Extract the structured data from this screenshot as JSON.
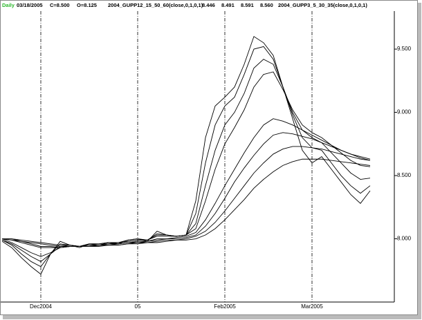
{
  "chart_data": {
    "type": "line",
    "header": {
      "period": "Daily",
      "date": "03/18/2005",
      "close": "C=8.500",
      "open": "O=8.125",
      "study1": "2004_GUPP12_15_50_60(close,0,1,0,1)",
      "readings": [
        "8.446",
        "8.491",
        "8.591",
        "8.560"
      ],
      "study2": "2004_GUPP3_5_30_35(close,0,1,0,1)"
    },
    "categories": [
      null,
      null,
      null,
      null,
      "Dec2004",
      null,
      null,
      null,
      null,
      null,
      null,
      null,
      null,
      null,
      "05",
      null,
      null,
      null,
      null,
      null,
      null,
      null,
      null,
      "Feb2005",
      null,
      null,
      null,
      null,
      null,
      null,
      null,
      null,
      "Mar2005",
      null,
      null,
      null,
      null,
      null,
      null,
      null,
      null
    ],
    "color": "#000000",
    "ylim": [
      7.5,
      9.79
    ],
    "yticks": [
      {
        "value": 8.0,
        "label": "8.000"
      },
      {
        "value": 8.5,
        "label": "8.500"
      },
      {
        "value": 9.0,
        "label": "9.000"
      },
      {
        "value": 9.5,
        "label": "9.500"
      }
    ],
    "series": [
      {
        "values": [
          7.98,
          7.93,
          7.85,
          7.78,
          7.72,
          7.88,
          7.98,
          7.95,
          7.93,
          7.96,
          7.95,
          7.97,
          7.96,
          7.99,
          8.0,
          7.98,
          8.06,
          8.03,
          8.02,
          8.03,
          8.3,
          8.8,
          9.05,
          9.12,
          9.2,
          9.38,
          9.6,
          9.55,
          9.45,
          9.2,
          8.95,
          8.7,
          8.6,
          8.65,
          8.55,
          8.45,
          8.35,
          8.28,
          8.38,
          null,
          null
        ]
      },
      {
        "values": [
          7.99,
          7.95,
          7.88,
          7.82,
          7.78,
          7.88,
          7.96,
          7.95,
          7.94,
          7.96,
          7.96,
          7.97,
          7.97,
          7.99,
          8.0,
          7.99,
          8.04,
          8.03,
          8.02,
          8.03,
          8.2,
          8.6,
          8.9,
          9.05,
          9.12,
          9.3,
          9.5,
          9.52,
          9.42,
          9.2,
          8.98,
          8.8,
          8.72,
          8.7,
          8.6,
          8.5,
          8.42,
          8.36,
          8.42,
          null,
          null
        ]
      },
      {
        "values": [
          7.99,
          7.96,
          7.91,
          7.86,
          7.82,
          7.88,
          7.94,
          7.95,
          7.94,
          7.96,
          7.96,
          7.97,
          7.97,
          7.98,
          7.99,
          7.99,
          8.03,
          8.03,
          8.02,
          8.03,
          8.12,
          8.42,
          8.7,
          8.9,
          9.0,
          9.15,
          9.35,
          9.42,
          9.38,
          9.2,
          9.0,
          8.86,
          8.8,
          8.76,
          8.68,
          8.6,
          8.52,
          8.47,
          8.48,
          null,
          null
        ]
      },
      {
        "values": [
          8.0,
          7.97,
          7.93,
          7.89,
          7.86,
          7.89,
          7.93,
          7.94,
          7.94,
          7.95,
          7.95,
          7.96,
          7.97,
          7.98,
          7.99,
          7.99,
          8.02,
          8.02,
          8.02,
          8.03,
          8.08,
          8.3,
          8.55,
          8.75,
          8.88,
          9.02,
          9.2,
          9.3,
          9.32,
          9.18,
          9.02,
          8.9,
          8.84,
          8.8,
          8.74,
          8.68,
          8.62,
          8.58,
          8.57,
          null,
          null
        ]
      },
      {
        "values": [
          8.0,
          7.99,
          7.97,
          7.95,
          7.93,
          7.93,
          7.93,
          7.94,
          7.94,
          7.95,
          7.95,
          7.96,
          7.96,
          7.97,
          7.98,
          7.98,
          8.0,
          8.0,
          8.01,
          8.02,
          8.05,
          8.15,
          8.28,
          8.42,
          8.55,
          8.68,
          8.8,
          8.9,
          8.95,
          8.93,
          8.9,
          8.86,
          8.82,
          8.78,
          8.74,
          8.7,
          8.67,
          8.64,
          8.62,
          null,
          null
        ]
      },
      {
        "values": [
          8.0,
          7.99,
          7.98,
          7.96,
          7.94,
          7.94,
          7.93,
          7.94,
          7.94,
          7.94,
          7.95,
          7.95,
          7.96,
          7.97,
          7.97,
          7.98,
          7.99,
          8.0,
          8.0,
          8.01,
          8.03,
          8.1,
          8.2,
          8.32,
          8.45,
          8.56,
          8.66,
          8.75,
          8.82,
          8.84,
          8.83,
          8.81,
          8.79,
          8.76,
          8.73,
          8.7,
          8.67,
          8.65,
          8.63,
          null,
          null
        ]
      },
      {
        "values": [
          8.0,
          8.0,
          7.98,
          7.97,
          7.96,
          7.95,
          7.94,
          7.94,
          7.94,
          7.94,
          7.95,
          7.95,
          7.95,
          7.96,
          7.97,
          7.97,
          7.98,
          7.99,
          7.99,
          8.0,
          8.02,
          8.06,
          8.13,
          8.22,
          8.32,
          8.42,
          8.52,
          8.6,
          8.67,
          8.71,
          8.73,
          8.73,
          8.72,
          8.71,
          8.69,
          8.67,
          8.65,
          8.63,
          8.62,
          null,
          null
        ]
      },
      {
        "values": [
          8.0,
          8.0,
          7.99,
          7.98,
          7.97,
          7.96,
          7.95,
          7.95,
          7.94,
          7.94,
          7.94,
          7.95,
          7.95,
          7.96,
          7.96,
          7.97,
          7.97,
          7.98,
          7.99,
          7.99,
          8.0,
          8.03,
          8.08,
          8.15,
          8.23,
          8.31,
          8.4,
          8.47,
          8.53,
          8.58,
          8.61,
          8.63,
          8.63,
          8.63,
          8.62,
          8.61,
          8.6,
          8.59,
          8.58,
          null,
          null
        ]
      }
    ]
  }
}
